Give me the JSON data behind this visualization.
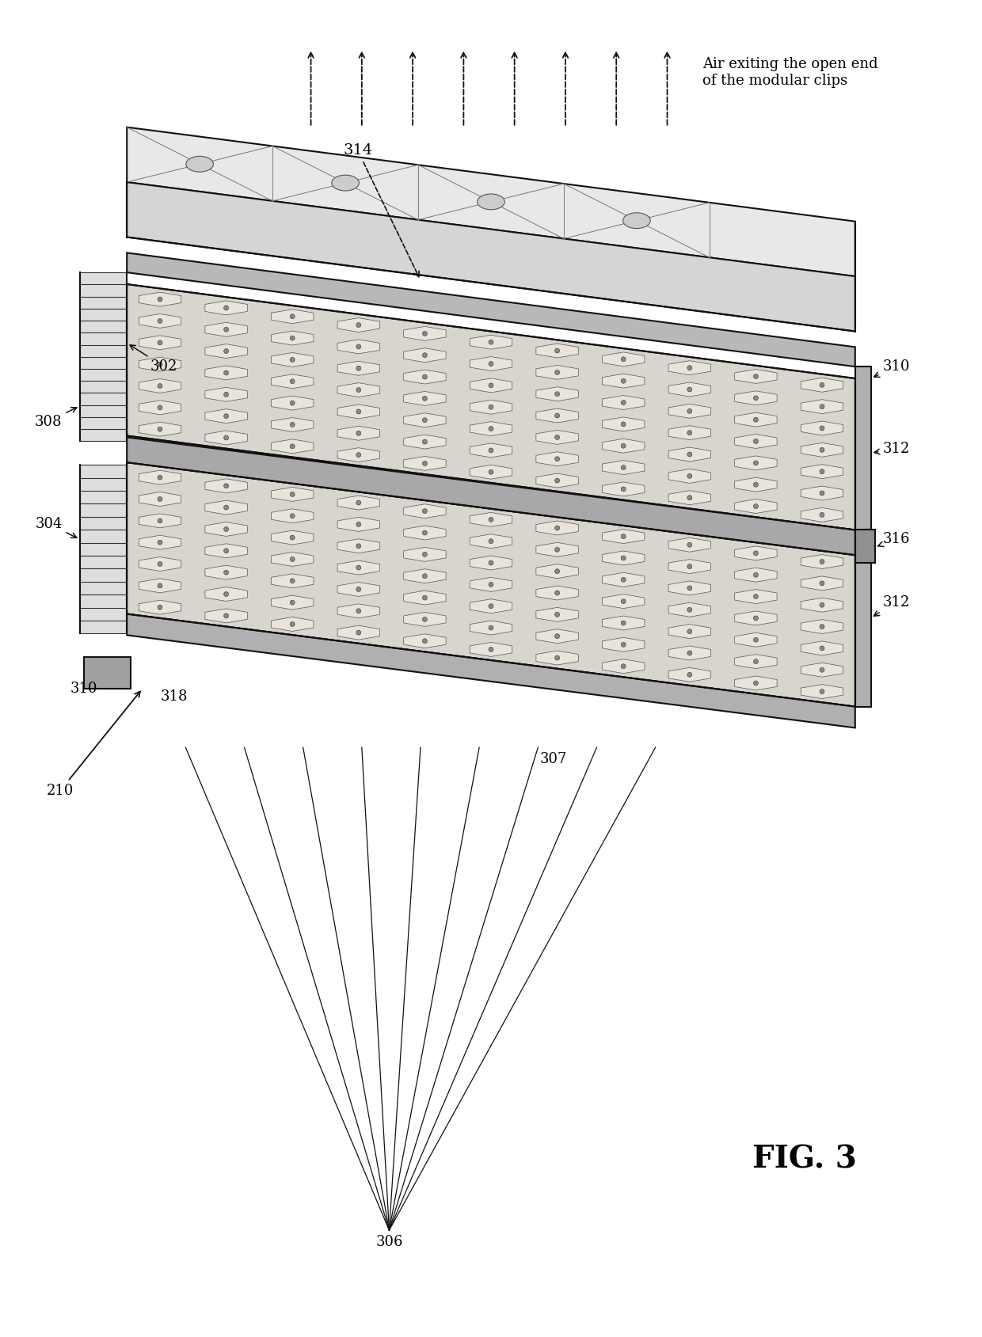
{
  "title": "FIG. 3",
  "bg_color": "#ffffff",
  "fig_width": 12.4,
  "fig_height": 16.89,
  "annotation_text": "Air exiting the open end\nof the modular clips",
  "c_dark": "#111111",
  "c_frame": "#333333",
  "c_light_gray": "#e0e0e0",
  "c_mid_gray": "#c8c8c8",
  "c_dark_gray": "#a0a0a0",
  "c_cell_bg": "#d4d0c8",
  "c_cell_edge": "#555555",
  "c_white": "#f5f5f5"
}
